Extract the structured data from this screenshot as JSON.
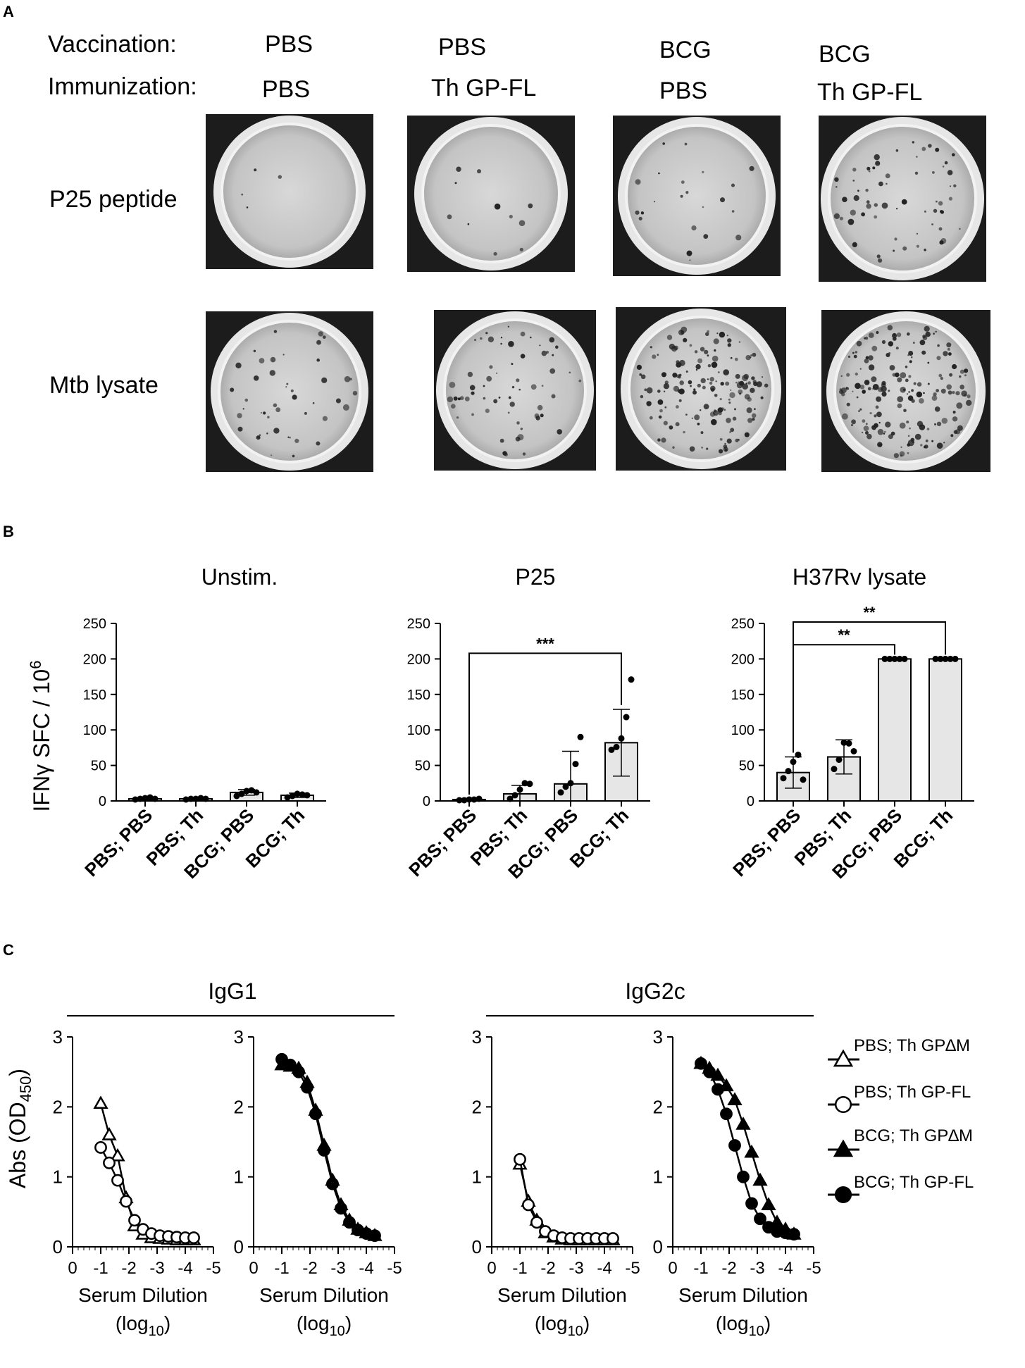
{
  "panel_a": {
    "letter": "A",
    "vaccination_label": "Vaccination:",
    "immunization_label": "Immunization:",
    "groups": [
      {
        "vaccination": "PBS",
        "immunization": "PBS"
      },
      {
        "vaccination": "PBS",
        "immunization": "Th GP-FL"
      },
      {
        "vaccination": "BCG",
        "immunization": "PBS"
      },
      {
        "vaccination": "BCG",
        "immunization": "Th GP-FL"
      }
    ],
    "rows": [
      {
        "label": "P25 peptide",
        "spot_density": [
          0.02,
          0.06,
          0.12,
          0.35
        ]
      },
      {
        "label": "Mtb lysate",
        "spot_density": [
          0.25,
          0.35,
          0.9,
          1.0
        ]
      }
    ]
  },
  "panel_b": {
    "letter": "B",
    "y_axis_label_main": "IFN",
    "y_axis_label_greek": "γ",
    "y_axis_label_rest": " SFC  / 10",
    "y_axis_label_sup": "6"
  },
  "panel_c": {
    "letter": "C",
    "group_labels": [
      "IgG1",
      "IgG2c"
    ],
    "legend": [
      {
        "label": "PBS; Th GP∆M",
        "marker": "triangle-open"
      },
      {
        "label": "PBS; Th GP-FL",
        "marker": "circle-open"
      },
      {
        "label": "BCG; Th GP∆M",
        "marker": "triangle-filled"
      },
      {
        "label": "BCG; Th GP-FL",
        "marker": "circle-filled"
      }
    ],
    "y_axis_label": "Abs (OD",
    "y_axis_sub": "450",
    "y_axis_close": ")",
    "x_axis_label_1": "Serum Dilution",
    "x_axis_label_2": "(log",
    "x_axis_sub": "10",
    "x_axis_close": ")"
  },
  "chart_data": [
    {
      "type": "bar",
      "title": "Unstim.",
      "categories": [
        "PBS; PBS",
        "PBS; Th",
        "BCG; PBS",
        "BCG; Th"
      ],
      "values": [
        3,
        3,
        12,
        8
      ],
      "errors": [
        1.5,
        1.5,
        4,
        3
      ],
      "points": [
        [
          2,
          3,
          4,
          5,
          3
        ],
        [
          2,
          3,
          3,
          4,
          3
        ],
        [
          7,
          10,
          14,
          15,
          12
        ],
        [
          5,
          7,
          10,
          9,
          8
        ]
      ],
      "ylim": [
        0,
        250
      ],
      "yticks": [
        0,
        50,
        100,
        150,
        200,
        250
      ],
      "significance": []
    },
    {
      "type": "bar",
      "title": "P25",
      "categories": [
        "PBS; PBS",
        "PBS; Th",
        "BCG; PBS",
        "BCG; Th"
      ],
      "values": [
        2,
        10,
        24,
        82
      ],
      "errors": [
        1,
        12,
        46,
        47
      ],
      "points": [
        [
          1,
          1,
          2,
          2,
          3
        ],
        [
          3,
          8,
          16,
          25,
          24
        ],
        [
          12,
          20,
          25,
          52,
          90
        ],
        [
          72,
          76,
          88,
          118,
          171
        ]
      ],
      "ylim": [
        0,
        250
      ],
      "yticks": [
        0,
        50,
        100,
        150,
        200,
        250
      ],
      "significance": [
        {
          "from": 0,
          "to": 3,
          "label": "***",
          "y": 208
        }
      ]
    },
    {
      "type": "bar",
      "title": "H37Rv lysate",
      "categories": [
        "PBS; PBS",
        "PBS; Th",
        "BCG; PBS",
        "BCG; Th"
      ],
      "values": [
        40,
        62,
        200,
        200
      ],
      "errors": [
        22,
        24,
        0,
        0
      ],
      "points": [
        [
          32,
          42,
          55,
          65,
          30
        ],
        [
          45,
          58,
          82,
          81,
          70
        ],
        [
          200,
          200,
          200,
          200,
          200
        ],
        [
          200,
          200,
          200,
          200,
          200
        ]
      ],
      "ylim": [
        0,
        250
      ],
      "yticks": [
        0,
        50,
        100,
        150,
        200,
        250
      ],
      "significance": [
        {
          "from": 0,
          "to": 2,
          "label": "**",
          "y": 220
        },
        {
          "from": 0,
          "to": 3,
          "label": "**",
          "y": 252
        }
      ]
    },
    {
      "type": "line",
      "group": "IgG1",
      "x": [
        -1,
        -1.3,
        -1.6,
        -1.9,
        -2.2,
        -2.5,
        -2.8,
        -3.1,
        -3.4,
        -3.7,
        -4.0,
        -4.3
      ],
      "xlim": [
        0,
        -5
      ],
      "xticks": [
        0,
        -1,
        -2,
        -3,
        -4,
        -5
      ],
      "ylim": [
        0,
        3
      ],
      "yticks": [
        0,
        1,
        2,
        3
      ],
      "series": [
        {
          "name": "PBS; Th GP∆M",
          "marker": "triangle-open",
          "values": [
            2.05,
            1.6,
            1.3,
            0.7,
            0.3,
            0.18,
            0.13,
            0.12,
            0.11,
            0.1,
            0.1,
            0.1
          ]
        },
        {
          "name": "PBS; Th GP-FL",
          "marker": "circle-open",
          "values": [
            1.42,
            1.2,
            0.95,
            0.65,
            0.38,
            0.25,
            0.19,
            0.16,
            0.15,
            0.14,
            0.13,
            0.13
          ]
        }
      ]
    },
    {
      "type": "line",
      "group": "IgG1",
      "x": [
        -1,
        -1.3,
        -1.6,
        -1.9,
        -2.2,
        -2.5,
        -2.8,
        -3.1,
        -3.4,
        -3.7,
        -4.0,
        -4.3
      ],
      "xlim": [
        0,
        -5
      ],
      "xticks": [
        0,
        -1,
        -2,
        -3,
        -4,
        -5
      ],
      "ylim": [
        0,
        3
      ],
      "yticks": [
        0,
        1,
        2,
        3
      ],
      "series": [
        {
          "name": "BCG; Th GP∆M",
          "marker": "triangle-filled",
          "values": [
            2.6,
            2.58,
            2.55,
            2.35,
            1.95,
            1.45,
            0.95,
            0.6,
            0.38,
            0.25,
            0.2,
            0.16
          ]
        },
        {
          "name": "BCG; Th GP-FL",
          "marker": "circle-filled",
          "values": [
            2.68,
            2.6,
            2.5,
            2.28,
            1.9,
            1.38,
            0.9,
            0.55,
            0.35,
            0.24,
            0.19,
            0.16
          ]
        }
      ]
    },
    {
      "type": "line",
      "group": "IgG2c",
      "x": [
        -1,
        -1.3,
        -1.6,
        -1.9,
        -2.2,
        -2.5,
        -2.8,
        -3.1,
        -3.4,
        -3.7,
        -4.0,
        -4.3
      ],
      "xlim": [
        0,
        -5
      ],
      "xticks": [
        0,
        -1,
        -2,
        -3,
        -4,
        -5
      ],
      "ylim": [
        0,
        3
      ],
      "yticks": [
        0,
        1,
        2,
        3
      ],
      "series": [
        {
          "name": "PBS; Th GP∆M",
          "marker": "triangle-open",
          "values": [
            1.18,
            0.65,
            0.38,
            0.2,
            0.14,
            0.11,
            0.1,
            0.1,
            0.1,
            0.1,
            0.1,
            0.1
          ]
        },
        {
          "name": "PBS; Th GP-FL",
          "marker": "circle-open",
          "values": [
            1.25,
            0.6,
            0.35,
            0.22,
            0.16,
            0.13,
            0.12,
            0.12,
            0.12,
            0.12,
            0.12,
            0.12
          ]
        }
      ]
    },
    {
      "type": "line",
      "group": "IgG2c",
      "x": [
        -1,
        -1.3,
        -1.6,
        -1.9,
        -2.2,
        -2.5,
        -2.8,
        -3.1,
        -3.4,
        -3.7,
        -4.0,
        -4.3
      ],
      "xlim": [
        0,
        -5
      ],
      "xticks": [
        0,
        -1,
        -2,
        -3,
        -4,
        -5
      ],
      "ylim": [
        0,
        3
      ],
      "yticks": [
        0,
        1,
        2,
        3
      ],
      "series": [
        {
          "name": "BCG; Th GP∆M",
          "marker": "triangle-filled",
          "values": [
            2.62,
            2.55,
            2.45,
            2.3,
            2.1,
            1.75,
            1.35,
            0.95,
            0.6,
            0.35,
            0.25,
            0.18
          ]
        },
        {
          "name": "BCG; Th GP-FL",
          "marker": "circle-filled",
          "values": [
            2.62,
            2.5,
            2.25,
            1.9,
            1.45,
            1.0,
            0.62,
            0.4,
            0.28,
            0.22,
            0.2,
            0.18
          ]
        }
      ]
    }
  ]
}
